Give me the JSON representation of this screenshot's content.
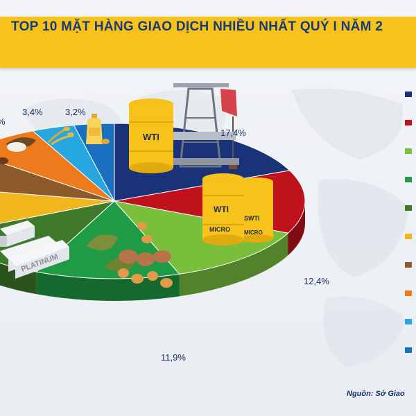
{
  "title": "TOP 10 MẶT HÀNG GIAO DỊCH NHIỀU NHẤT QUÝ I NĂM 2",
  "source": "Nguồn: Sở Giao",
  "colors": {
    "title_band": "#f7c31a",
    "title_text": "#163a7a",
    "navy": "#1a3278",
    "red": "#c0121c",
    "light_green": "#79bf3c",
    "green": "#1f9b45",
    "dark_green": "#3f7a2c",
    "yellow": "#f1b61b",
    "brown": "#8c5a2b",
    "orange": "#ee7a1e",
    "sky": "#27a7e0",
    "blue": "#1b6fc1"
  },
  "chart_data": {
    "type": "pie",
    "style": "3d",
    "legend_position": "right",
    "slices": [
      {
        "value": 17.4,
        "label": "17,4%",
        "color": "#1a3278",
        "icon": "wti-barrel-pumpjack-icon"
      },
      {
        "value": 12.4,
        "label": "12,4%",
        "color": "#c0121c",
        "icon": "micro-wti-barrel-icon"
      },
      {
        "value": 11.9,
        "label": "11,9%",
        "color": "#79bf3c",
        "icon": "soybean-icon"
      },
      {
        "value": 11.5,
        "label": "",
        "color": "#1f9b45",
        "icon": "platinum-bars-icon"
      },
      {
        "value": 10.5,
        "label": "",
        "color": "#3f7a2c",
        "icon": ""
      },
      {
        "value": 9.5,
        "label": "",
        "color": "#f1b61b",
        "icon": ""
      },
      {
        "value": 7.5,
        "label": "",
        "color": "#8c5a2b",
        "icon": ""
      },
      {
        "value": 6.5,
        "label": "",
        "color": "#ee7a1e",
        "icon": "coffee-icon"
      },
      {
        "value": 3.4,
        "label": "3,4%",
        "color": "#27a7e0",
        "icon": "wheat-icon"
      },
      {
        "value": 3.2,
        "label": "3,2%",
        "color": "#1b6fc1",
        "icon": "soybean-oil-icon"
      }
    ],
    "partial_labels": [
      {
        "text": "%"
      }
    ],
    "icon_texts": {
      "wti": "WTI",
      "micro_wti": "WTI",
      "micro_wti_sub": "MICRO",
      "micro_side": "SWTI",
      "micro_side_sub": "MICRO",
      "platinum": "PLATINUM"
    }
  }
}
